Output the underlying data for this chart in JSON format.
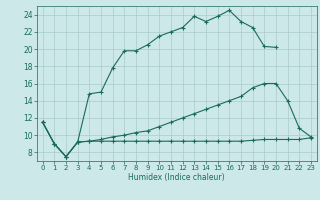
{
  "xlabel": "Humidex (Indice chaleur)",
  "bg_color": "#cce8e8",
  "grid_color": "#aacccc",
  "line_color": "#1a6b5a",
  "xlim": [
    -0.5,
    23.5
  ],
  "ylim": [
    7.0,
    25.0
  ],
  "xticks": [
    0,
    1,
    2,
    3,
    4,
    5,
    6,
    7,
    8,
    9,
    10,
    11,
    12,
    13,
    14,
    15,
    16,
    17,
    18,
    19,
    20,
    21,
    22,
    23
  ],
  "yticks": [
    8,
    10,
    12,
    14,
    16,
    18,
    20,
    22,
    24
  ],
  "line1_x": [
    0,
    1,
    2,
    3,
    4,
    5,
    6,
    7,
    8,
    9,
    10,
    11,
    12,
    13,
    14,
    15,
    16,
    17,
    18,
    19,
    20
  ],
  "line1_y": [
    11.5,
    9.0,
    7.5,
    9.2,
    14.8,
    15.0,
    17.8,
    19.8,
    19.8,
    20.5,
    21.5,
    22.0,
    22.5,
    23.8,
    23.2,
    23.8,
    24.5,
    23.2,
    22.5,
    20.3,
    20.2
  ],
  "line2_x": [
    0,
    1,
    2,
    3,
    4,
    5,
    6,
    7,
    8,
    9,
    10,
    11,
    12,
    13,
    14,
    15,
    16,
    17,
    18,
    19,
    20,
    21,
    22,
    23
  ],
  "line2_y": [
    11.5,
    9.0,
    7.5,
    9.2,
    9.3,
    9.3,
    9.3,
    9.3,
    9.3,
    9.3,
    9.3,
    9.3,
    9.3,
    9.3,
    9.3,
    9.3,
    9.3,
    9.3,
    9.4,
    9.5,
    9.5,
    9.5,
    9.5,
    9.7
  ],
  "line3_x": [
    0,
    1,
    2,
    3,
    4,
    5,
    6,
    7,
    8,
    9,
    10,
    11,
    12,
    13,
    14,
    15,
    16,
    17,
    18,
    19,
    20,
    21,
    22,
    23
  ],
  "line3_y": [
    11.5,
    9.0,
    7.5,
    9.2,
    9.3,
    9.5,
    9.8,
    10.0,
    10.3,
    10.5,
    11.0,
    11.5,
    12.0,
    12.5,
    13.0,
    13.5,
    14.0,
    14.5,
    15.5,
    16.0,
    16.0,
    14.0,
    10.8,
    9.8
  ]
}
